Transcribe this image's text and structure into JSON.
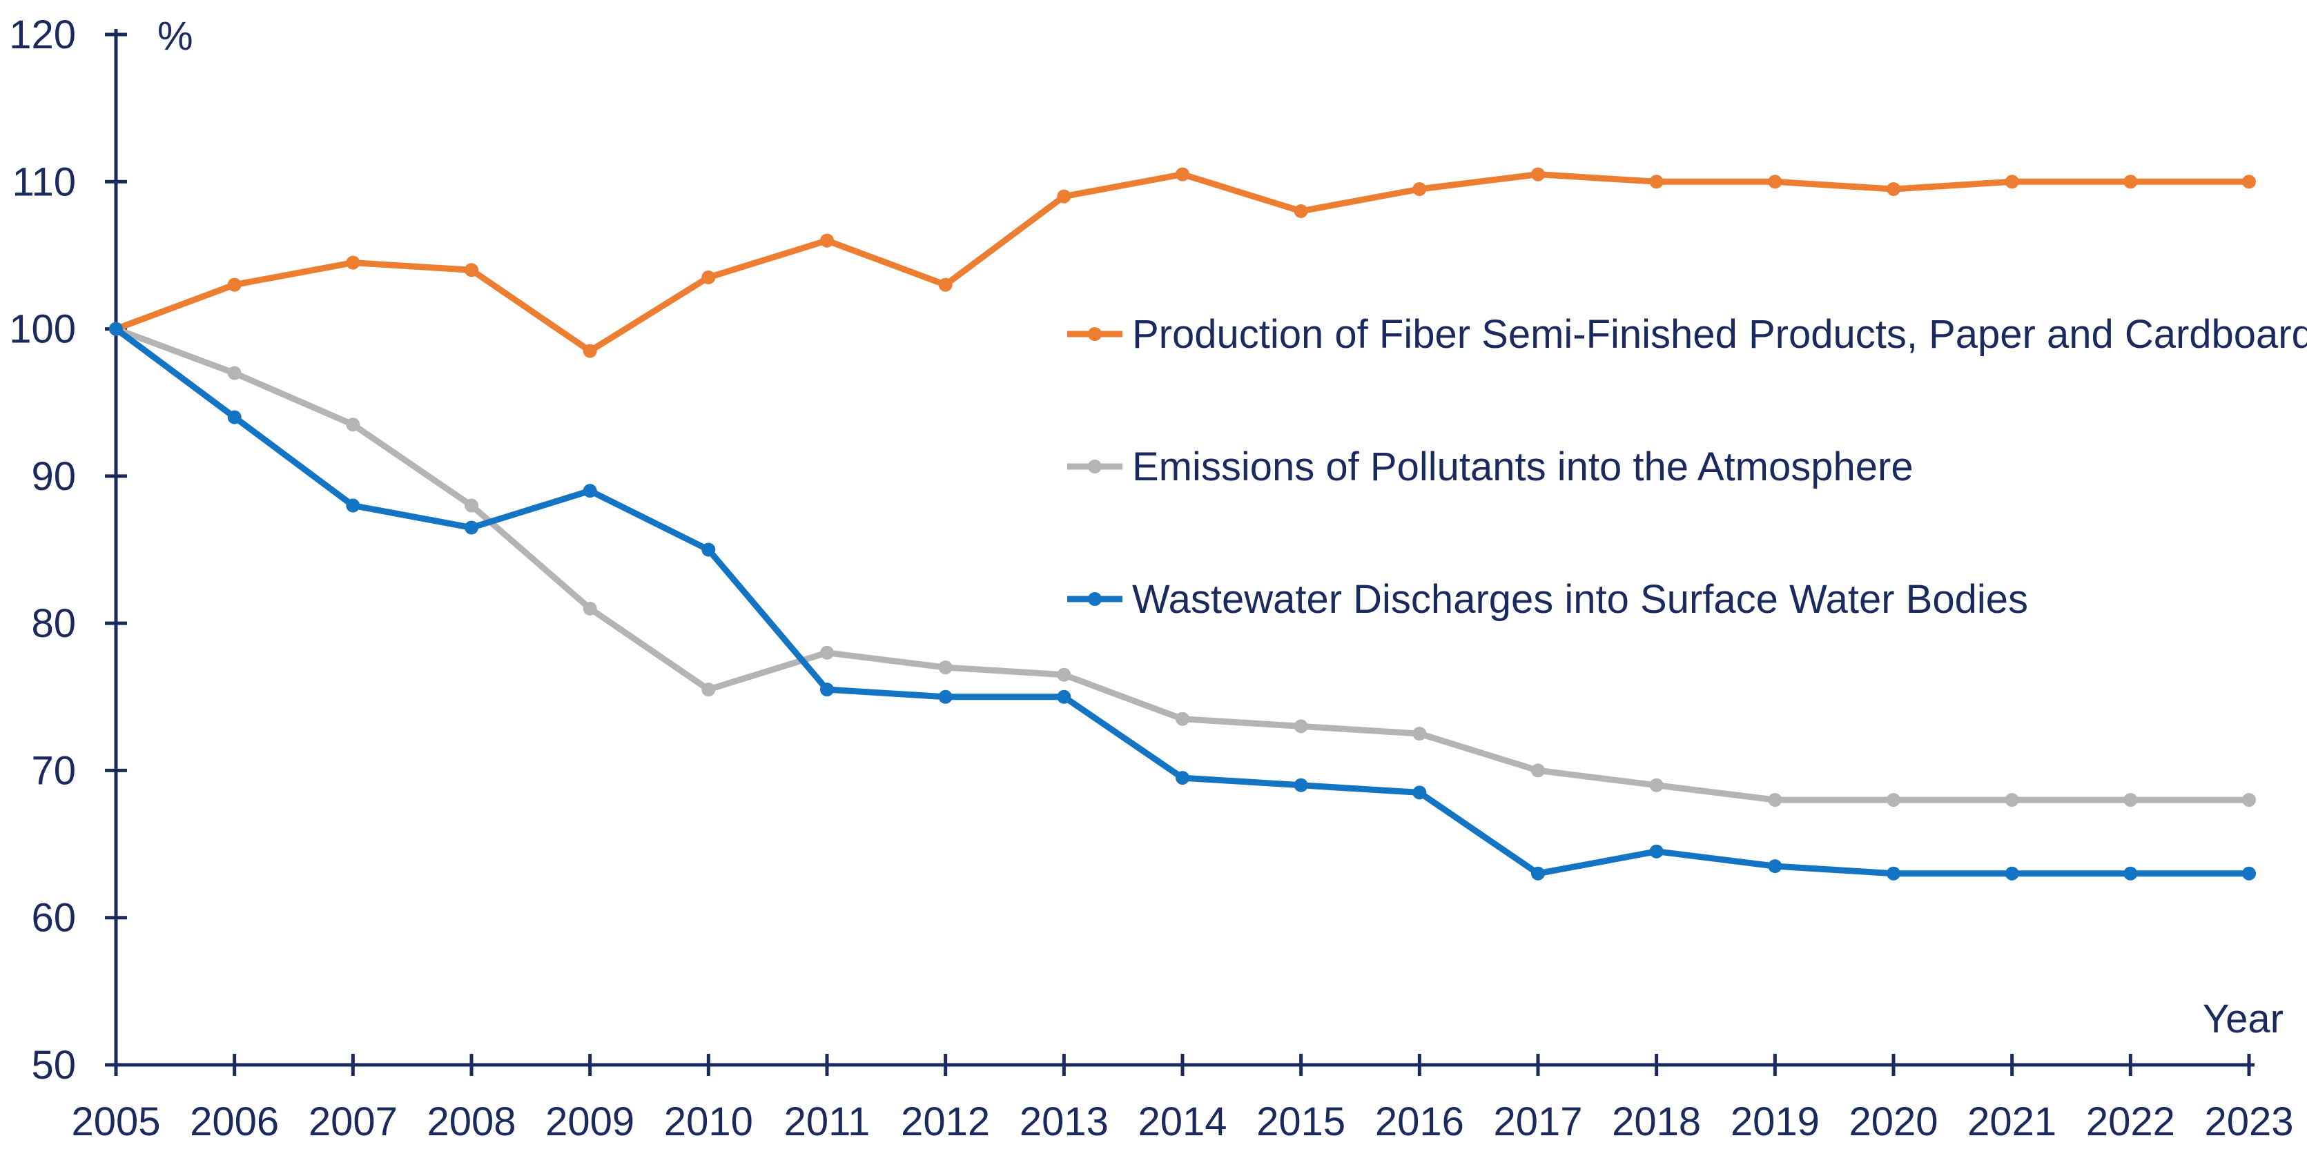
{
  "colors": {
    "axis": "#1a2a5e",
    "text": "#1a2a5e",
    "production": "#ed7d31",
    "emissions": "#b4b4b4",
    "wastewater": "#1474c4"
  },
  "chart_data": {
    "type": "line",
    "title": "",
    "ylabel": "%",
    "xlabel": "Year",
    "ylim": [
      50,
      120
    ],
    "yticks": [
      50,
      60,
      70,
      80,
      90,
      100,
      110,
      120
    ],
    "grid": false,
    "legend_position": "center-right",
    "x": [
      "2005",
      "2006",
      "2007",
      "2008",
      "2009",
      "2010",
      "2011",
      "2012",
      "2013",
      "2014",
      "2015",
      "2016",
      "2017",
      "2018",
      "2019",
      "2020",
      "2021",
      "2022",
      "2023"
    ],
    "series": [
      {
        "name": "Production of Fiber Semi-Finished Products, Paper and Cardboard",
        "color_key": "production",
        "values": [
          100,
          103,
          104.5,
          104,
          98.5,
          103.5,
          106,
          103,
          109,
          110.5,
          108,
          109.5,
          110.5,
          110,
          110,
          109.5,
          110,
          110,
          110
        ]
      },
      {
        "name": "Emissions of Pollutants into the Atmosphere",
        "color_key": "emissions",
        "values": [
          100,
          97,
          93.5,
          88,
          81,
          75.5,
          78,
          77,
          76.5,
          73.5,
          73,
          72.5,
          70,
          69,
          68,
          68,
          68,
          68,
          68
        ]
      },
      {
        "name": "Wastewater Discharges into Surface Water Bodies",
        "color_key": "wastewater",
        "values": [
          100,
          94,
          88,
          86.5,
          89,
          85,
          75.5,
          75,
          75,
          69.5,
          69,
          68.5,
          63,
          64.5,
          63.5,
          63,
          63,
          63,
          63
        ]
      }
    ]
  }
}
